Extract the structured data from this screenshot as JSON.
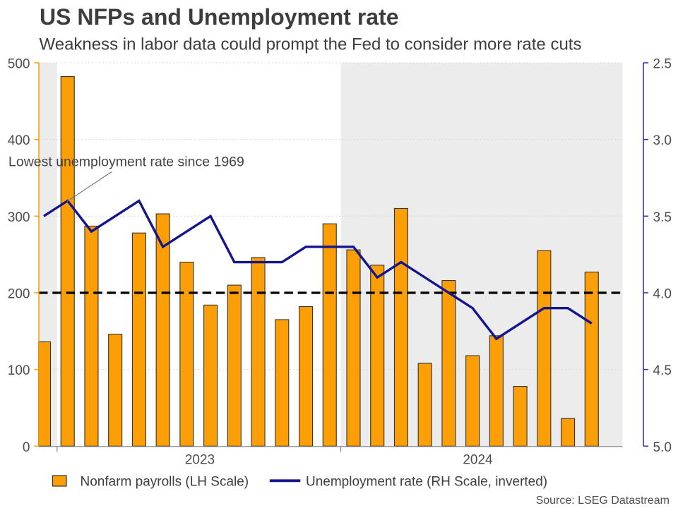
{
  "header": {
    "title": "US NFPs and Unemployment rate",
    "subtitle": "Weakness in labor data could prompt the Fed to consider more rate cuts"
  },
  "annotation": {
    "text": "Lowest unemployment rate since 1969"
  },
  "legend": {
    "items": [
      {
        "swatch": "bar",
        "label": "Nonfarm payrolls (LH Scale)"
      },
      {
        "swatch": "line",
        "label": "Unemployment rate (RH Scale, inverted)"
      }
    ]
  },
  "source": {
    "text": "Source: LSEG Datastream"
  },
  "colors": {
    "bar_fill": "#FC9E06",
    "bar_border": "#333333",
    "line": "#15158C",
    "dashed_reference": "#000000",
    "shaded_band": "#ECECEC",
    "gridline": "#D9D9D9",
    "x_axis": "#808080",
    "left_axis": "#F59B00",
    "right_axis": "#2A2A9B",
    "text_dark": "#3d3d3d",
    "text_axis": "#4d4d4d"
  },
  "chart_data": {
    "type": "bar",
    "title": "US NFPs and Unemployment rate",
    "subtitle": "Weakness in labor data could prompt the Fed to consider more rate cuts",
    "categories": [
      "2022-12",
      "2023-01",
      "2023-02",
      "2023-03",
      "2023-04",
      "2023-05",
      "2023-06",
      "2023-07",
      "2023-08",
      "2023-09",
      "2023-10",
      "2023-11",
      "2023-12",
      "2024-01",
      "2024-02",
      "2024-03",
      "2024-04",
      "2024-05",
      "2024-06",
      "2024-07",
      "2024-08",
      "2024-09",
      "2024-10",
      "2024-11"
    ],
    "series": [
      {
        "name": "Nonfarm payrolls (LH Scale)",
        "type": "bar",
        "axis": "left",
        "values": [
          136,
          482,
          287,
          146,
          278,
          303,
          240,
          184,
          210,
          246,
          165,
          182,
          290,
          256,
          236,
          310,
          108,
          216,
          118,
          144,
          78,
          255,
          36,
          227
        ]
      },
      {
        "name": "Unemployment rate (RH Scale, inverted)",
        "type": "line",
        "axis": "right",
        "values": [
          3.5,
          3.4,
          3.6,
          3.5,
          3.4,
          3.7,
          3.6,
          3.5,
          3.8,
          3.8,
          3.8,
          3.7,
          3.7,
          3.7,
          3.9,
          3.8,
          3.9,
          4.0,
          4.1,
          4.3,
          4.2,
          4.1,
          4.1,
          4.2
        ]
      }
    ],
    "left_axis": {
      "ticks": [
        0,
        100,
        200,
        300,
        400,
        500
      ],
      "range": [
        0,
        500
      ]
    },
    "right_axis": {
      "ticks": [
        2.5,
        3.0,
        3.5,
        4.0,
        4.5,
        5.0
      ],
      "range": [
        2.5,
        5.0
      ],
      "inverted": true
    },
    "x_tick_labels": [
      "2023",
      "2024"
    ],
    "reference_line": {
      "axis": "left",
      "value": 200,
      "style": "dashed"
    },
    "shaded_year_bands": [
      "2022",
      "2024"
    ],
    "grid": true,
    "legend_position": "bottom"
  }
}
